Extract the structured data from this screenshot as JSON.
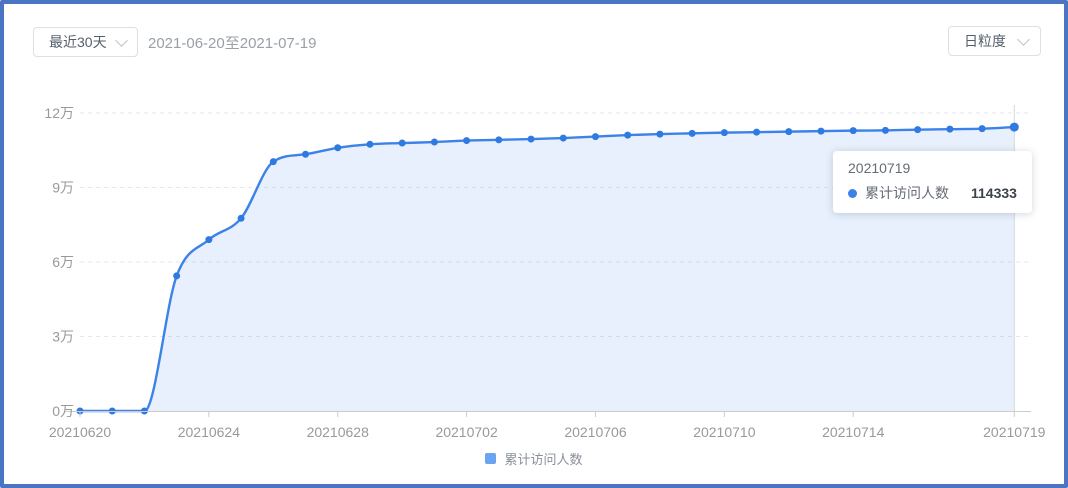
{
  "header": {
    "range_select": {
      "value": "最近30天"
    },
    "date_range": "2021-06-20至2021-07-19",
    "granularity_select": {
      "value": "日粒度"
    }
  },
  "tooltip": {
    "title": "20210719",
    "series_label": "累计访问人数",
    "value": "114333"
  },
  "legend": {
    "label": "累计访问人数"
  },
  "colors": {
    "series_line": "#3d82e8",
    "series_point": "#2f7ae0",
    "series_area": "rgba(61,130,232,0.12)",
    "legend_marker": "#6ba4ef",
    "frame": "#4b74c2",
    "axis_label": "#999999",
    "gridline": "#e3e7f0",
    "axis_line": "#cccccc",
    "axis_pointer": "#d4d7dc"
  },
  "chart_data": {
    "type": "area",
    "title": "",
    "xlabel": "",
    "ylabel": "",
    "x": [
      "20210620",
      "20210621",
      "20210622",
      "20210623",
      "20210624",
      "20210625",
      "20210626",
      "20210627",
      "20210628",
      "20210629",
      "20210630",
      "20210701",
      "20210702",
      "20210703",
      "20210704",
      "20210705",
      "20210706",
      "20210707",
      "20210708",
      "20210709",
      "20210710",
      "20210711",
      "20210712",
      "20210713",
      "20210714",
      "20210715",
      "20210716",
      "20210717",
      "20210718",
      "20210719"
    ],
    "series": [
      {
        "name": "累计访问人数",
        "values": [
          0,
          0,
          0,
          54400,
          69000,
          77600,
          100400,
          103400,
          106000,
          107400,
          107900,
          108300,
          108900,
          109200,
          109500,
          109900,
          110500,
          111100,
          111500,
          111800,
          112100,
          112300,
          112500,
          112700,
          112900,
          113000,
          113300,
          113500,
          113700,
          114333
        ]
      }
    ],
    "ylim": [
      0,
      120000
    ],
    "y_tick_values": [
      0,
      30000,
      60000,
      90000,
      120000
    ],
    "y_tick_labels": [
      "0万",
      "3万",
      "6万",
      "9万",
      "12万"
    ],
    "x_tick_indices": [
      0,
      4,
      8,
      12,
      16,
      20,
      24,
      29
    ],
    "x_tick_labels": [
      "20210620",
      "20210624",
      "20210628",
      "20210702",
      "20210706",
      "20210710",
      "20210714",
      "20210719"
    ],
    "grid": true,
    "grid_style": "dashed",
    "legend_position": "bottom",
    "smooth": true,
    "highlighted_point": {
      "x": "20210719",
      "value": 114333
    }
  }
}
